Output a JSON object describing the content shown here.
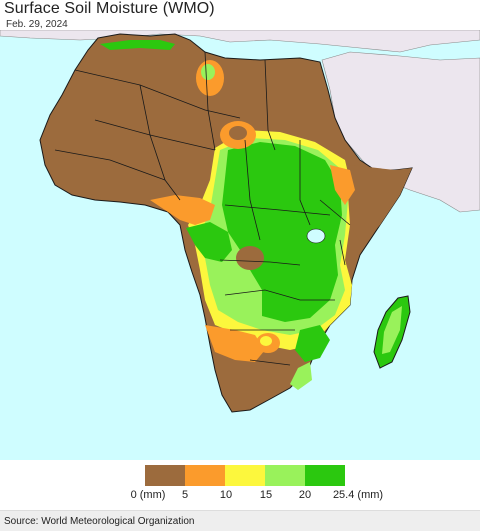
{
  "header": {
    "title": "Surface Soil Moisture (WMO)",
    "date": "Feb. 29, 2024"
  },
  "map": {
    "ocean_color": "#cffdff",
    "outside_land_color": "#ece6ee",
    "border_color": "#1a1a1a"
  },
  "legend": {
    "bins": [
      {
        "color": "#9c6b3d"
      },
      {
        "color": "#fb9b2c"
      },
      {
        "color": "#fcf73d"
      },
      {
        "color": "#99f25b"
      },
      {
        "color": "#2bc80f"
      }
    ],
    "labels": [
      "0 (mm)",
      "5",
      "10",
      "15",
      "20",
      "25.4 (mm)"
    ]
  },
  "footer": {
    "source": "Source: World Meteorological Organization"
  }
}
